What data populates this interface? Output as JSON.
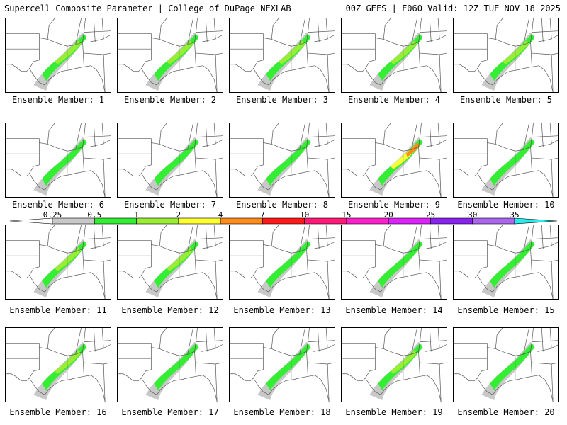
{
  "header": {
    "left": "Supercell Composite Parameter | College of DuPage NEXLAB",
    "right": "00Z GEFS | F060 Valid: 12Z TUE NOV 18 2025"
  },
  "member_label_prefix": "Ensemble Member: ",
  "members": [
    {
      "id": "1",
      "max_level": 2
    },
    {
      "id": "2",
      "max_level": 2
    },
    {
      "id": "3",
      "max_level": 2
    },
    {
      "id": "4",
      "max_level": 2
    },
    {
      "id": "5",
      "max_level": 2
    },
    {
      "id": "6",
      "max_level": 1
    },
    {
      "id": "7",
      "max_level": 1
    },
    {
      "id": "8",
      "max_level": 1
    },
    {
      "id": "9",
      "max_level": 4
    },
    {
      "id": "10",
      "max_level": 1
    },
    {
      "id": "11",
      "max_level": 2
    },
    {
      "id": "12",
      "max_level": 2
    },
    {
      "id": "13",
      "max_level": 1
    },
    {
      "id": "14",
      "max_level": 1
    },
    {
      "id": "15",
      "max_level": 1
    },
    {
      "id": "16",
      "max_level": 2
    },
    {
      "id": "17",
      "max_level": 1
    },
    {
      "id": "18",
      "max_level": 1
    },
    {
      "id": "19",
      "max_level": 2
    },
    {
      "id": "20",
      "max_level": 1
    }
  ],
  "colorbar": {
    "labels": [
      "0.25",
      "0.5",
      "1",
      "2",
      "4",
      "7",
      "10",
      "15",
      "20",
      "25",
      "30",
      "35"
    ],
    "colors": [
      "#ffffff",
      "#c8c8c8",
      "#33ee33",
      "#99ee33",
      "#ffff33",
      "#ff8c1a",
      "#ff1a1a",
      "#ff1a7a",
      "#ff22cc",
      "#dd22ff",
      "#8a22ee",
      "#aa66ee",
      "#22eeee"
    ]
  },
  "legend_colors": {
    "gray": "#c8c8c8",
    "green": "#33ee33",
    "lightgreen": "#99ee33",
    "yellow": "#ffff33",
    "orange": "#ff8c1a"
  }
}
